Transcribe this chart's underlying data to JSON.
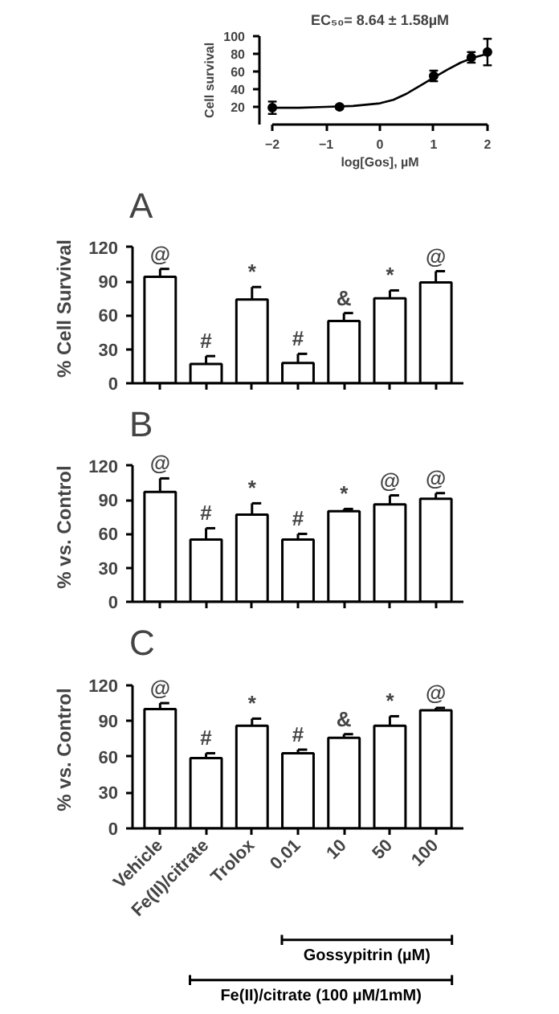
{
  "chart_data": [
    {
      "type": "scatter",
      "xlabel": "log[Gos], µM",
      "ylabel": "Cell survival",
      "annotations": [
        "EC₅₀= 8.64 ± 1.58µM"
      ],
      "xlim": [
        -2,
        2
      ],
      "xticks": [
        -2,
        -1,
        0,
        1,
        2
      ],
      "ylim": [
        0,
        100
      ],
      "yticks": [
        20,
        40,
        60,
        80,
        100
      ],
      "series": [
        {
          "type": "scatter",
          "marker": "circle",
          "color": "#000000",
          "x": [
            -2,
            -0.75,
            1,
            1.7,
            2
          ],
          "values": [
            19,
            20,
            55,
            76,
            82
          ],
          "errors": [
            7,
            2,
            6,
            6,
            15
          ]
        },
        {
          "type": "line",
          "color": "#000000",
          "x": [
            -2,
            -1.5,
            -1,
            -0.5,
            0,
            0.25,
            0.5,
            0.75,
            1,
            1.25,
            1.5,
            1.75,
            2
          ],
          "values": [
            19,
            19,
            20,
            21,
            24,
            28,
            35,
            44,
            53,
            62,
            70,
            76,
            80
          ]
        }
      ]
    },
    {
      "type": "bar",
      "title": "A",
      "ylabel": "% Cell Survival",
      "categories": [
        null,
        null,
        null,
        null,
        null,
        null,
        null
      ],
      "values": [
        94,
        17,
        74,
        18,
        55,
        75,
        89
      ],
      "errors": [
        7,
        7,
        11,
        8,
        7,
        7,
        10
      ],
      "color": "#ffffff",
      "ylim": [
        0,
        120
      ],
      "yticks": [
        0,
        30,
        60,
        90,
        120
      ],
      "tick_labels": "y",
      "annotations": [
        "@",
        "#",
        "*",
        "#",
        "&",
        "*",
        "@"
      ]
    },
    {
      "type": "bar",
      "title": "B",
      "ylabel": "% vs. Control",
      "categories": [
        null,
        null,
        null,
        null,
        null,
        null,
        null
      ],
      "values": [
        97,
        55,
        77,
        55,
        80,
        86,
        91
      ],
      "errors": [
        12,
        10,
        10,
        5,
        2,
        8,
        5
      ],
      "color": "#ffffff",
      "ylim": [
        0,
        120
      ],
      "yticks": [
        0,
        30,
        60,
        90,
        120
      ],
      "tick_labels": "y",
      "annotations": [
        "@",
        "#",
        "*",
        "#",
        "*",
        "@",
        "@"
      ]
    },
    {
      "type": "bar",
      "title": "C",
      "ylabel": "% vs. Control",
      "categories": [
        "Vehicle",
        "Fe(II)/citrate",
        "Trolox",
        "0.01",
        "10",
        "50",
        "100"
      ],
      "values": [
        100,
        59,
        86,
        63,
        76,
        86,
        99
      ],
      "errors": [
        5,
        4,
        6,
        3,
        3,
        8,
        2
      ],
      "color": "#ffffff",
      "ylim": [
        0,
        120
      ],
      "yticks": [
        0,
        30,
        60,
        90,
        120
      ],
      "annotations": [
        {
          "text": "@",
          "x": "Vehicle",
          "y": 105
        },
        {
          "text": "#",
          "x": "Fe(II)/citrate",
          "y": 63
        },
        {
          "text": "*",
          "x": "Trolox",
          "y": 92
        },
        {
          "text": "#",
          "x": "0.01",
          "y": 66
        },
        {
          "text": "&",
          "x": "10",
          "y": 79
        },
        {
          "text": "*",
          "x": "50",
          "y": 94
        },
        {
          "text": "@",
          "x": "100",
          "y": 101
        },
        "Gossypitrin (µM)",
        "Fe(II)/citrate (100 µM/1mM)"
      ]
    }
  ]
}
